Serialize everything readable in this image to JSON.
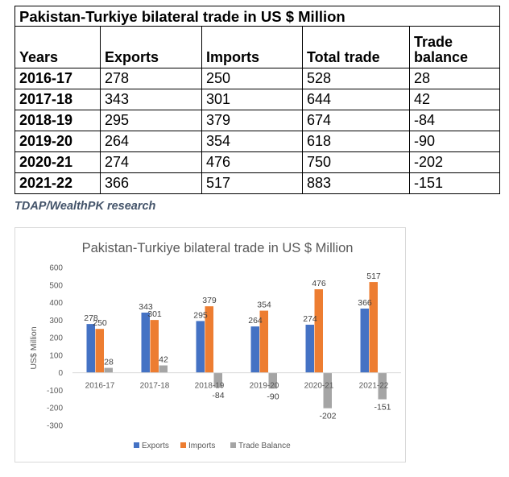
{
  "table": {
    "title": "Pakistan-Turkiye bilateral trade in US $ Million",
    "headers": [
      "Years",
      "Exports",
      "Imports",
      "Total trade",
      "Trade balance"
    ],
    "rows": [
      [
        "2016-17",
        "278",
        "250",
        "528",
        "28"
      ],
      [
        "2017-18",
        "343",
        "301",
        "644",
        "42"
      ],
      [
        "2018-19",
        "295",
        "379",
        "674",
        "-84"
      ],
      [
        "2019-20",
        "264",
        "354",
        "618",
        "-90"
      ],
      [
        "2020-21",
        "274",
        "476",
        "750",
        "-202"
      ],
      [
        "2021-22",
        "366",
        "517",
        "883",
        "-151"
      ]
    ]
  },
  "source_note": "TDAP/WealthPK research",
  "chart_data": {
    "type": "bar",
    "title": "Pakistan-Turkiye bilateral trade in US $ Million",
    "ylabel": "US$ Million",
    "xlabel": "",
    "categories": [
      "2016-17",
      "2017-18",
      "2018-19",
      "2019-20",
      "2020-21",
      "2021-22"
    ],
    "series": [
      {
        "name": "Exports",
        "color": "#4472c4",
        "values": [
          278,
          343,
          295,
          264,
          274,
          366
        ]
      },
      {
        "name": "Imports",
        "color": "#ed7d31",
        "values": [
          250,
          301,
          379,
          354,
          476,
          517
        ]
      },
      {
        "name": "Trade Balance",
        "color": "#a5a5a5",
        "values": [
          28,
          42,
          -84,
          -90,
          -202,
          -151
        ]
      }
    ],
    "ylim": [
      -300,
      600
    ],
    "yticks": [
      600,
      500,
      400,
      300,
      200,
      100,
      0,
      -100,
      -200,
      -300
    ],
    "grid": false,
    "legend": "bottom"
  }
}
